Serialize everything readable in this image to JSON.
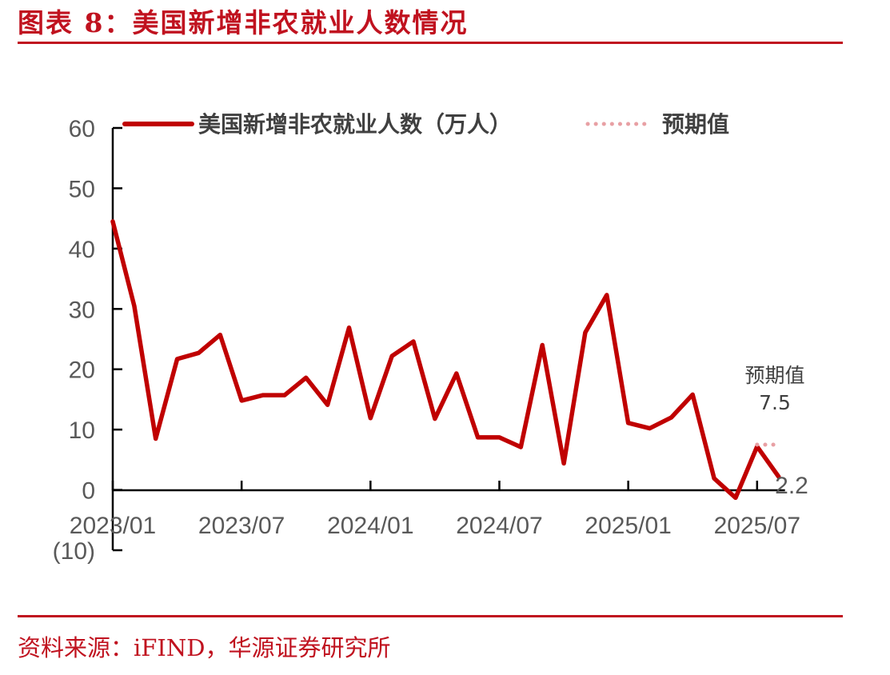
{
  "header": {
    "title": "图表 8：美国新增非农就业人数情况"
  },
  "footer": {
    "source": "资料来源：iFIND，华源证券研究所"
  },
  "colors": {
    "accent": "#c0121f",
    "series": "#c00000",
    "expected": "#e8a0a4",
    "axis": "#000000",
    "text": "#595959"
  },
  "chart_data": {
    "type": "line",
    "title": "",
    "xlabel": "",
    "ylabel": "",
    "ylim": [
      -10,
      60
    ],
    "y_ticks": [
      {
        "value": 60,
        "label": "60"
      },
      {
        "value": 50,
        "label": "50"
      },
      {
        "value": 40,
        "label": "40"
      },
      {
        "value": 30,
        "label": "30"
      },
      {
        "value": 20,
        "label": "20"
      },
      {
        "value": 10,
        "label": "10"
      },
      {
        "value": 0,
        "label": "0"
      },
      {
        "value": -10,
        "label": "(10)"
      }
    ],
    "x_ticks": [
      {
        "label": "2023/01",
        "date": "2023/01"
      },
      {
        "label": "2023/07",
        "date": "2023/07"
      },
      {
        "label": "2024/01",
        "date": "2024/01"
      },
      {
        "label": "2024/07",
        "date": "2024/07"
      },
      {
        "label": "2025/01",
        "date": "2025/01"
      },
      {
        "label": "2025/07",
        "date": "2025/07"
      }
    ],
    "legend": {
      "position": "top",
      "series_label": "美国新增非农就业人数（万人）",
      "expected_label": "预期值"
    },
    "series": [
      {
        "name": "美国新增非农就业人数（万人）",
        "points": [
          {
            "x": "2023/01",
            "y": 44.5
          },
          {
            "x": "2023/02",
            "y": 30.5
          },
          {
            "x": "2023/03",
            "y": 8.5
          },
          {
            "x": "2023/04",
            "y": 21.7
          },
          {
            "x": "2023/05",
            "y": 22.7
          },
          {
            "x": "2023/06",
            "y": 25.7
          },
          {
            "x": "2023/07",
            "y": 14.8
          },
          {
            "x": "2023/08",
            "y": 15.7
          },
          {
            "x": "2023/09",
            "y": 15.7
          },
          {
            "x": "2023/10",
            "y": 18.6
          },
          {
            "x": "2023/11",
            "y": 14.1
          },
          {
            "x": "2023/12",
            "y": 26.9
          },
          {
            "x": "2024/01",
            "y": 11.9
          },
          {
            "x": "2024/02",
            "y": 22.2
          },
          {
            "x": "2024/03",
            "y": 24.6
          },
          {
            "x": "2024/04",
            "y": 11.8
          },
          {
            "x": "2024/05",
            "y": 19.3
          },
          {
            "x": "2024/06",
            "y": 8.7
          },
          {
            "x": "2024/07",
            "y": 8.7
          },
          {
            "x": "2024/08",
            "y": 7.1
          },
          {
            "x": "2024/09",
            "y": 24.0
          },
          {
            "x": "2024/10",
            "y": 4.4
          },
          {
            "x": "2024/11",
            "y": 26.1
          },
          {
            "x": "2024/12",
            "y": 32.3
          },
          {
            "x": "2025/01",
            "y": 11.1
          },
          {
            "x": "2025/02",
            "y": 10.2
          },
          {
            "x": "2025/03",
            "y": 12.0
          },
          {
            "x": "2025/04",
            "y": 15.8
          },
          {
            "x": "2025/05",
            "y": 1.9
          },
          {
            "x": "2025/06",
            "y": -1.3
          },
          {
            "x": "2025/07",
            "y": 7.2
          },
          {
            "x": "2025/08",
            "y": 2.2
          }
        ]
      },
      {
        "name": "预期值",
        "style": "dotted",
        "points": [
          {
            "x": "2025/07",
            "y": 7.5
          },
          {
            "x": "2025/08",
            "y": 7.5
          }
        ]
      }
    ],
    "annotations": {
      "expected_label": "预期值",
      "expected_value": "7.5",
      "last_value": "2.2"
    }
  }
}
